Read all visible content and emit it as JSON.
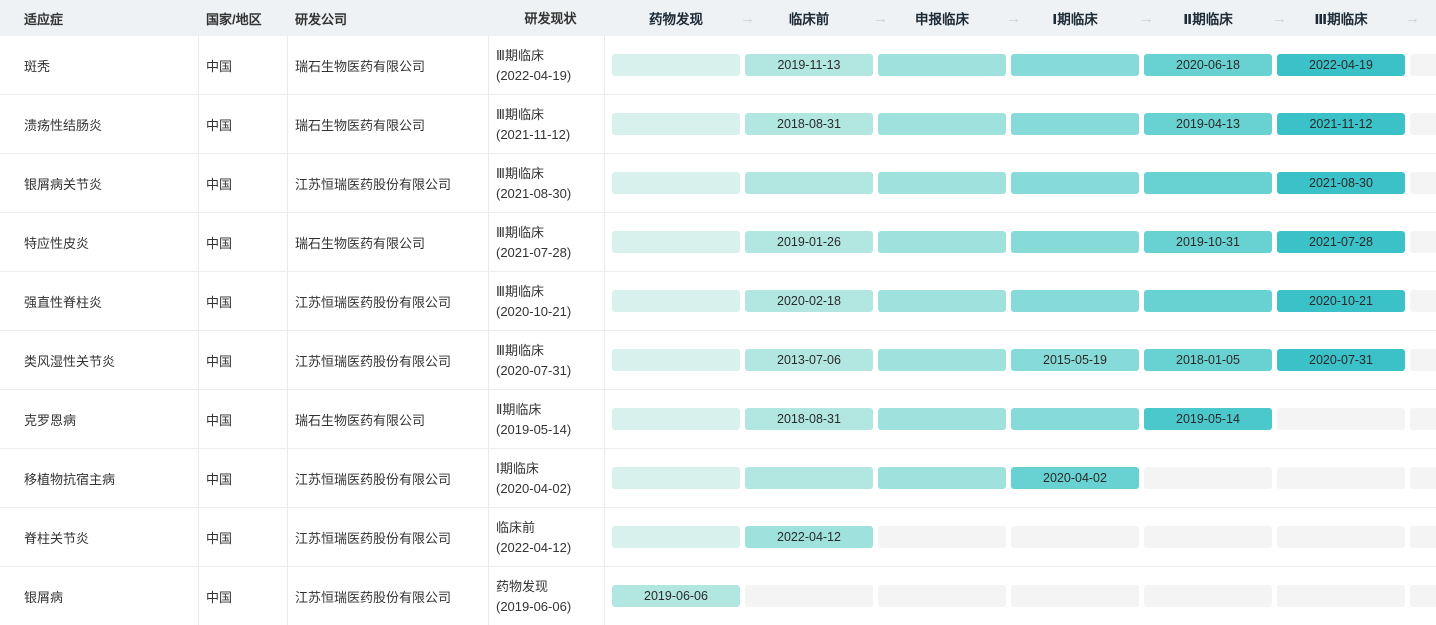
{
  "table": {
    "columns": [
      {
        "label": "适应症"
      },
      {
        "label": "国家/地区"
      },
      {
        "label": "研发公司"
      },
      {
        "label": "研发现状"
      }
    ],
    "stage_columns": [
      "药物发现",
      "临床前",
      "申报临床",
      "Ⅰ期临床",
      "Ⅱ期临床",
      "Ⅲ期临床"
    ],
    "arrow_icon": "→",
    "rows": [
      {
        "indication": "斑秃",
        "country": "中国",
        "company": "瑞石生物医药有限公司",
        "status_stage": "Ⅲ期临床",
        "status_date": "(2022-04-19)",
        "stages": [
          {
            "active": true,
            "date": ""
          },
          {
            "active": true,
            "date": "2019-11-13"
          },
          {
            "active": true,
            "date": ""
          },
          {
            "active": true,
            "date": ""
          },
          {
            "active": true,
            "date": "2020-06-18"
          },
          {
            "active": true,
            "date": "2022-04-19"
          }
        ]
      },
      {
        "indication": "溃疡性结肠炎",
        "country": "中国",
        "company": "瑞石生物医药有限公司",
        "status_stage": "Ⅲ期临床",
        "status_date": "(2021-11-12)",
        "stages": [
          {
            "active": true,
            "date": ""
          },
          {
            "active": true,
            "date": "2018-08-31"
          },
          {
            "active": true,
            "date": ""
          },
          {
            "active": true,
            "date": ""
          },
          {
            "active": true,
            "date": "2019-04-13"
          },
          {
            "active": true,
            "date": "2021-11-12"
          }
        ]
      },
      {
        "indication": "银屑病关节炎",
        "country": "中国",
        "company": "江苏恒瑞医药股份有限公司",
        "status_stage": "Ⅲ期临床",
        "status_date": "(2021-08-30)",
        "stages": [
          {
            "active": true,
            "date": ""
          },
          {
            "active": true,
            "date": ""
          },
          {
            "active": true,
            "date": ""
          },
          {
            "active": true,
            "date": ""
          },
          {
            "active": true,
            "date": ""
          },
          {
            "active": true,
            "date": "2021-08-30"
          }
        ]
      },
      {
        "indication": "特应性皮炎",
        "country": "中国",
        "company": "瑞石生物医药有限公司",
        "status_stage": "Ⅲ期临床",
        "status_date": "(2021-07-28)",
        "stages": [
          {
            "active": true,
            "date": ""
          },
          {
            "active": true,
            "date": "2019-01-26"
          },
          {
            "active": true,
            "date": ""
          },
          {
            "active": true,
            "date": ""
          },
          {
            "active": true,
            "date": "2019-10-31"
          },
          {
            "active": true,
            "date": "2021-07-28"
          }
        ]
      },
      {
        "indication": "强直性脊柱炎",
        "country": "中国",
        "company": "江苏恒瑞医药股份有限公司",
        "status_stage": "Ⅲ期临床",
        "status_date": "(2020-10-21)",
        "stages": [
          {
            "active": true,
            "date": ""
          },
          {
            "active": true,
            "date": "2020-02-18"
          },
          {
            "active": true,
            "date": ""
          },
          {
            "active": true,
            "date": ""
          },
          {
            "active": true,
            "date": ""
          },
          {
            "active": true,
            "date": "2020-10-21"
          }
        ]
      },
      {
        "indication": "类风湿性关节炎",
        "country": "中国",
        "company": "江苏恒瑞医药股份有限公司",
        "status_stage": "Ⅲ期临床",
        "status_date": "(2020-07-31)",
        "stages": [
          {
            "active": true,
            "date": ""
          },
          {
            "active": true,
            "date": "2013-07-06"
          },
          {
            "active": true,
            "date": ""
          },
          {
            "active": true,
            "date": "2015-05-19"
          },
          {
            "active": true,
            "date": "2018-01-05"
          },
          {
            "active": true,
            "date": "2020-07-31"
          }
        ]
      },
      {
        "indication": "克罗恩病",
        "country": "中国",
        "company": "瑞石生物医药有限公司",
        "status_stage": "Ⅱ期临床",
        "status_date": "(2019-05-14)",
        "stages": [
          {
            "active": true,
            "date": ""
          },
          {
            "active": true,
            "date": "2018-08-31"
          },
          {
            "active": true,
            "date": ""
          },
          {
            "active": true,
            "date": ""
          },
          {
            "active": true,
            "date": "2019-05-14"
          },
          {
            "active": false,
            "date": ""
          }
        ]
      },
      {
        "indication": "移植物抗宿主病",
        "country": "中国",
        "company": "江苏恒瑞医药股份有限公司",
        "status_stage": "Ⅰ期临床",
        "status_date": "(2020-04-02)",
        "stages": [
          {
            "active": true,
            "date": ""
          },
          {
            "active": true,
            "date": ""
          },
          {
            "active": true,
            "date": ""
          },
          {
            "active": true,
            "date": "2020-04-02"
          },
          {
            "active": false,
            "date": ""
          },
          {
            "active": false,
            "date": ""
          }
        ]
      },
      {
        "indication": "脊柱关节炎",
        "country": "中国",
        "company": "江苏恒瑞医药股份有限公司",
        "status_stage": "临床前",
        "status_date": "(2022-04-12)",
        "stages": [
          {
            "active": true,
            "date": ""
          },
          {
            "active": true,
            "date": "2022-04-12"
          },
          {
            "active": false,
            "date": ""
          },
          {
            "active": false,
            "date": ""
          },
          {
            "active": false,
            "date": ""
          },
          {
            "active": false,
            "date": ""
          }
        ]
      },
      {
        "indication": "银屑病",
        "country": "中国",
        "company": "江苏恒瑞医药股份有限公司",
        "status_stage": "药物发现",
        "status_date": "(2019-06-06)",
        "stages": [
          {
            "active": true,
            "date": "2019-06-06"
          },
          {
            "active": false,
            "date": ""
          },
          {
            "active": false,
            "date": ""
          },
          {
            "active": false,
            "date": ""
          },
          {
            "active": false,
            "date": ""
          },
          {
            "active": false,
            "date": ""
          }
        ]
      }
    ]
  },
  "colors": {
    "stage_gradient": [
      "#d8f1ec",
      "#b2e7e1",
      "#9fe1dc",
      "#86dad7",
      "#68d1d1",
      "#4ac8cc",
      "#3ac2c8"
    ],
    "inactive_segment": "#f4f4f4",
    "header_bg": "#eef2f4",
    "row_border": "#ebeeef",
    "column_border": "#e8ebed",
    "header_text": "#1d2b36",
    "body_text": "#333333",
    "bar_text": "#2a2a2a",
    "arrow": "#c8d3d6"
  }
}
